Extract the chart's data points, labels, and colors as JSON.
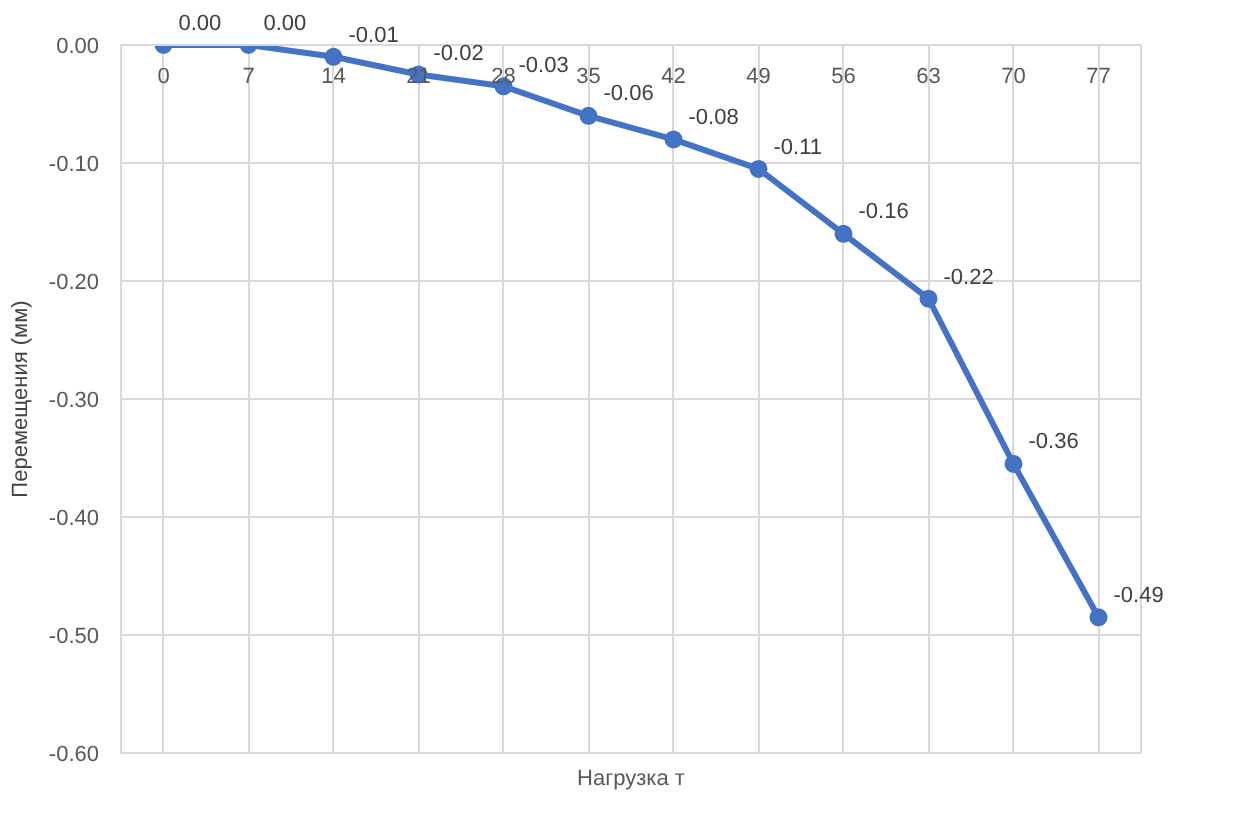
{
  "chart_data": {
    "type": "line",
    "xlabel": "Нагрузка т",
    "ylabel": "Перемещения (мм)",
    "categories": [
      "0",
      "7",
      "14",
      "21",
      "28",
      "35",
      "42",
      "49",
      "56",
      "63",
      "70",
      "77"
    ],
    "series": [
      {
        "color": "#4472c4",
        "values": [
          0,
          0,
          -0.01,
          -0.025,
          -0.035,
          -0.06,
          -0.08,
          -0.105,
          -0.16,
          -0.215,
          -0.355,
          -0.485
        ],
        "value_labels": [
          "0.00",
          "0.00",
          "-0.01",
          "-0.02",
          "-0.03",
          "-0.06",
          "-0.08",
          "-0.11",
          "-0.16",
          "-0.22",
          "-0.36",
          "-0.49"
        ]
      }
    ],
    "ylim": [
      -0.6,
      0
    ],
    "yticks": [
      {
        "value": 0,
        "label": "0.00"
      },
      {
        "value": -0.1,
        "label": "-0.10"
      },
      {
        "value": -0.2,
        "label": "-0.20"
      },
      {
        "value": -0.3,
        "label": "-0.30"
      },
      {
        "value": -0.4,
        "label": "-0.40"
      },
      {
        "value": -0.5,
        "label": "-0.50"
      },
      {
        "value": -0.6,
        "label": "-0.60"
      }
    ],
    "grid": true,
    "marker": "circle",
    "line_style": "solid"
  }
}
